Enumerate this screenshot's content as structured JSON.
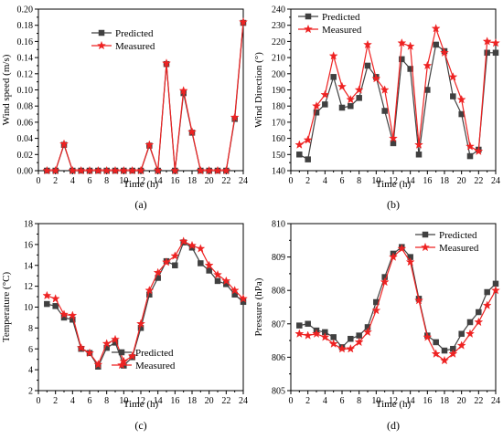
{
  "chart_data": [
    {
      "type": "line",
      "panel": "(a)",
      "xlabel": "Time (h)",
      "ylabel": "Wind speed (m/s)",
      "xlim": [
        0,
        24
      ],
      "ylim": [
        0,
        0.2
      ],
      "xticks": [
        0,
        2,
        4,
        6,
        8,
        10,
        12,
        14,
        16,
        18,
        20,
        22,
        24
      ],
      "yticks": [
        0.0,
        0.02,
        0.04,
        0.06,
        0.08,
        0.1,
        0.12,
        0.14,
        0.16,
        0.18,
        0.2
      ],
      "ytick_labels": [
        "0.00",
        "0.02",
        "0.04",
        "0.06",
        "0.08",
        "0.10",
        "0.12",
        "0.14",
        "0.16",
        "0.18",
        "0.20"
      ],
      "legend_position": "top-center",
      "x": [
        1,
        2,
        3,
        4,
        5,
        6,
        7,
        8,
        9,
        10,
        11,
        12,
        13,
        14,
        15,
        16,
        17,
        18,
        19,
        20,
        21,
        22,
        23,
        24
      ],
      "series": [
        {
          "name": "Predicted",
          "color": "#404040",
          "marker": "square",
          "values": [
            0,
            0,
            0.032,
            0,
            0,
            0,
            0,
            0,
            0,
            0,
            0,
            0,
            0.031,
            0,
            0.132,
            0,
            0.096,
            0.047,
            0,
            0,
            0,
            0,
            0.064,
            0.183
          ]
        },
        {
          "name": "Measured",
          "color": "#ee2222",
          "marker": "star",
          "values": [
            0,
            0,
            0.033,
            0,
            0,
            0,
            0,
            0,
            0,
            0,
            0,
            0,
            0.032,
            0,
            0.133,
            0,
            0.099,
            0.048,
            0,
            0,
            0,
            0,
            0.066,
            0.184
          ]
        }
      ]
    },
    {
      "type": "line",
      "panel": "(b)",
      "xlabel": "Time (h)",
      "ylabel": "Wind Direction (°)",
      "xlim": [
        0,
        24
      ],
      "ylim": [
        140,
        240
      ],
      "xticks": [
        0,
        2,
        4,
        6,
        8,
        10,
        12,
        14,
        16,
        18,
        20,
        22,
        24
      ],
      "yticks": [
        140,
        150,
        160,
        170,
        180,
        190,
        200,
        210,
        220,
        230,
        240
      ],
      "ytick_labels": [
        "140",
        "150",
        "160",
        "170",
        "180",
        "190",
        "200",
        "210",
        "220",
        "230",
        "240"
      ],
      "legend_position": "top-left",
      "x": [
        1,
        2,
        3,
        4,
        5,
        6,
        7,
        8,
        9,
        10,
        11,
        12,
        13,
        14,
        15,
        16,
        17,
        18,
        19,
        20,
        21,
        22,
        23,
        24
      ],
      "series": [
        {
          "name": "Predicted",
          "color": "#404040",
          "marker": "square",
          "values": [
            150,
            147,
            176,
            181,
            198,
            179,
            180,
            185,
            205,
            198,
            177,
            157,
            209,
            203,
            150,
            190,
            218,
            214,
            186,
            175,
            149,
            153,
            213,
            213
          ]
        },
        {
          "name": "Measured",
          "color": "#ee2222",
          "marker": "star",
          "values": [
            156,
            159,
            180,
            187,
            211,
            192,
            184,
            190,
            218,
            197,
            190,
            160,
            219,
            217,
            156,
            205,
            228,
            213,
            198,
            184,
            155,
            152,
            220,
            219
          ]
        }
      ]
    },
    {
      "type": "line",
      "panel": "(c)",
      "xlabel": "Time (h)",
      "ylabel": "Temperature (°C)",
      "xlim": [
        0,
        24
      ],
      "ylim": [
        2,
        18
      ],
      "xticks": [
        0,
        2,
        4,
        6,
        8,
        10,
        12,
        14,
        16,
        18,
        20,
        22,
        24
      ],
      "yticks": [
        2,
        4,
        6,
        8,
        10,
        12,
        14,
        16,
        18
      ],
      "ytick_labels": [
        "2",
        "4",
        "6",
        "8",
        "10",
        "12",
        "14",
        "16",
        "18"
      ],
      "legend_position": "bottom-left",
      "x": [
        1,
        2,
        3,
        4,
        5,
        6,
        7,
        8,
        9,
        10,
        11,
        12,
        13,
        14,
        15,
        16,
        17,
        18,
        19,
        20,
        21,
        22,
        23,
        24
      ],
      "series": [
        {
          "name": "Predicted",
          "color": "#404040",
          "marker": "square",
          "values": [
            10.3,
            10.1,
            9.0,
            8.8,
            6.0,
            5.6,
            4.3,
            6.1,
            6.6,
            4.4,
            5.2,
            8.0,
            11.2,
            12.8,
            14.4,
            14.0,
            16.2,
            15.7,
            14.2,
            13.5,
            12.5,
            12.2,
            11.2,
            10.5
          ]
        },
        {
          "name": "Measured",
          "color": "#ee2222",
          "marker": "star",
          "values": [
            11.1,
            10.8,
            9.3,
            9.2,
            6.1,
            5.6,
            4.5,
            6.5,
            6.9,
            4.8,
            5.3,
            8.4,
            11.6,
            13.3,
            14.3,
            14.9,
            16.3,
            15.9,
            15.6,
            14.0,
            13.1,
            12.5,
            11.6,
            10.8
          ]
        }
      ]
    },
    {
      "type": "line",
      "panel": "(d)",
      "xlabel": "Time (h)",
      "ylabel": "Pressure (hPa)",
      "xlim": [
        0,
        24
      ],
      "ylim": [
        805,
        810
      ],
      "xticks": [
        0,
        2,
        4,
        6,
        8,
        10,
        12,
        14,
        16,
        18,
        20,
        22,
        24
      ],
      "yticks": [
        805,
        806,
        807,
        808,
        809,
        810
      ],
      "ytick_labels": [
        "805",
        "806",
        "807",
        "808",
        "809",
        "810"
      ],
      "legend_position": "top-right",
      "x": [
        1,
        2,
        3,
        4,
        5,
        6,
        7,
        8,
        9,
        10,
        11,
        12,
        13,
        14,
        15,
        16,
        17,
        18,
        19,
        20,
        21,
        22,
        23,
        24
      ],
      "series": [
        {
          "name": "Predicted",
          "color": "#404040",
          "marker": "square",
          "values": [
            806.95,
            807.0,
            806.8,
            806.75,
            806.6,
            806.3,
            806.55,
            806.65,
            806.9,
            807.65,
            808.4,
            809.1,
            809.3,
            809.0,
            807.75,
            806.65,
            806.45,
            806.2,
            806.25,
            806.7,
            807.05,
            807.35,
            807.95,
            808.2
          ]
        },
        {
          "name": "Measured",
          "color": "#ee2222",
          "marker": "star",
          "values": [
            806.7,
            806.65,
            806.7,
            806.6,
            806.4,
            806.25,
            806.25,
            806.45,
            806.75,
            807.4,
            808.25,
            809.0,
            809.25,
            808.85,
            807.7,
            806.6,
            806.1,
            805.9,
            806.1,
            806.35,
            806.7,
            807.05,
            807.55,
            808.0
          ]
        }
      ]
    }
  ]
}
